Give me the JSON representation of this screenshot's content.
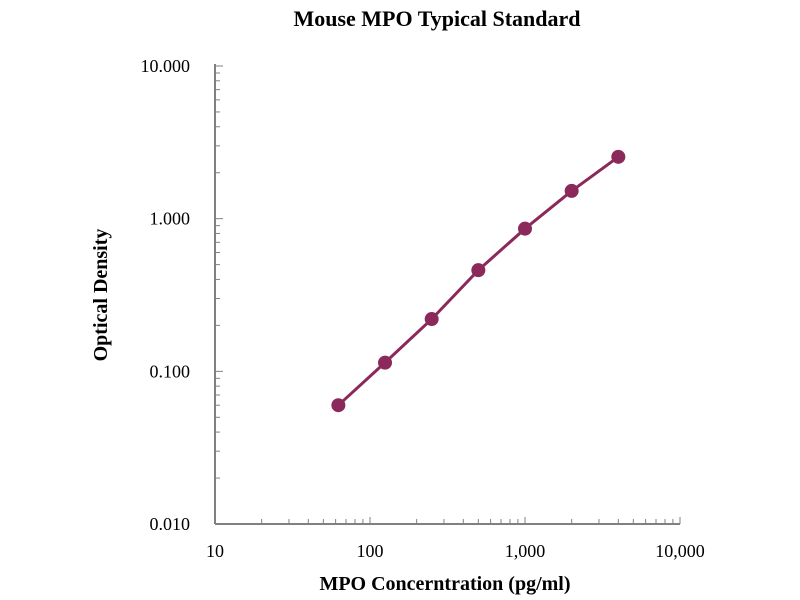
{
  "chart_data": {
    "type": "line",
    "title": "Mouse MPO Typical Standard",
    "xlabel": "MPO Concerntration (pg/ml)",
    "ylabel": "Optical Density",
    "xscale": "log",
    "yscale": "log",
    "xlim": [
      10,
      10000
    ],
    "ylim": [
      0.01,
      10
    ],
    "x_ticks": [
      10,
      100,
      1000,
      10000
    ],
    "x_tick_labels": [
      "10",
      "100",
      "1,000",
      "10,000"
    ],
    "y_ticks": [
      0.01,
      0.1,
      1,
      10
    ],
    "y_tick_labels": [
      "0.010",
      "0.100",
      "1.000",
      "10.000"
    ],
    "grid": false,
    "legend": "none",
    "series": [
      {
        "name": "Standard",
        "color": "#8b2a5a",
        "x": [
          62.5,
          125,
          250,
          500,
          1000,
          2000,
          4000
        ],
        "y": [
          0.06,
          0.114,
          0.22,
          0.46,
          0.86,
          1.52,
          2.54
        ]
      }
    ]
  }
}
